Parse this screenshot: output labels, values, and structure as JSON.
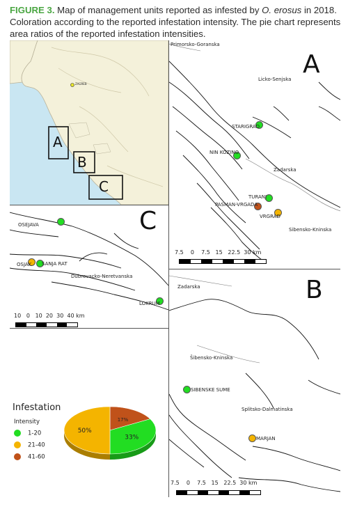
{
  "caption": {
    "figure": "FIGURE 3.",
    "text_before": " Map of management units reported as infested by ",
    "species": "O. erosus",
    "text_after": " in 2018. Coloration according to the reported infestation intensity. The pie chart represents area ratios of the reported infestation intensities."
  },
  "colors": {
    "low": "#22dd22",
    "mid": "#f4b400",
    "high": "#c0521a",
    "sea": "#c9e6f2",
    "land": "#f4f1da"
  },
  "inset": {
    "boxes": [
      "A",
      "B",
      "C"
    ],
    "capital": "ZAGREB"
  },
  "panel_a": {
    "letter": "A",
    "regions": [
      "Primorsko-Goranska",
      "Licko-Senjska",
      "Zadarska",
      "Sibensko-Kninska"
    ],
    "units": [
      {
        "name": "STARIGRAD",
        "intensity": "1-20"
      },
      {
        "name": "NIN KOZINO",
        "intensity": "1-20"
      },
      {
        "name": "TURANJ",
        "intensity": "1-20"
      },
      {
        "name": "PASMAN-VRGADA",
        "intensity": "41-60"
      },
      {
        "name": "VRGRAD",
        "intensity": "21-40"
      }
    ],
    "scale": [
      "7.5",
      "0",
      "7.5",
      "15",
      "22.5",
      "30 km"
    ]
  },
  "panel_b": {
    "letter": "B",
    "regions": [
      "Zadarska",
      "Šibensko-Kninska",
      "Splitsko-Dalmatinska"
    ],
    "units": [
      {
        "name": "SIBENSKE SUME",
        "intensity": "1-20"
      },
      {
        "name": "MARJAN",
        "intensity": "21-40"
      }
    ],
    "scale": [
      "7.5",
      "0",
      "7.5",
      "15",
      "22.5",
      "30 km"
    ]
  },
  "panel_c": {
    "letter": "C",
    "regions": [
      "Dubrovacko-Neretvanska"
    ],
    "units": [
      {
        "name": "OSEJAVA",
        "intensity": "1-20"
      },
      {
        "name": "OSJAK",
        "intensity": "21-40"
      },
      {
        "name": "SANJA RAT",
        "intensity": "1-20"
      },
      {
        "name": "LOKRUM",
        "intensity": "1-20"
      }
    ],
    "scale": [
      "10",
      "0",
      "10",
      "20",
      "30",
      "40 km"
    ]
  },
  "legend": {
    "title": "Infestation",
    "subtitle": "Intensity",
    "items": [
      {
        "label": "1-20",
        "color": "#22dd22"
      },
      {
        "label": "21-40",
        "color": "#f4b400"
      },
      {
        "label": "41-60",
        "color": "#c0521a"
      }
    ]
  },
  "chart_data": {
    "type": "pie",
    "categories": [
      "1-20",
      "21-40",
      "41-60"
    ],
    "values": [
      33,
      50,
      17
    ],
    "labels": [
      "33%",
      "50%",
      "17%"
    ],
    "colors": [
      "#22dd22",
      "#f4b400",
      "#c0521a"
    ]
  }
}
